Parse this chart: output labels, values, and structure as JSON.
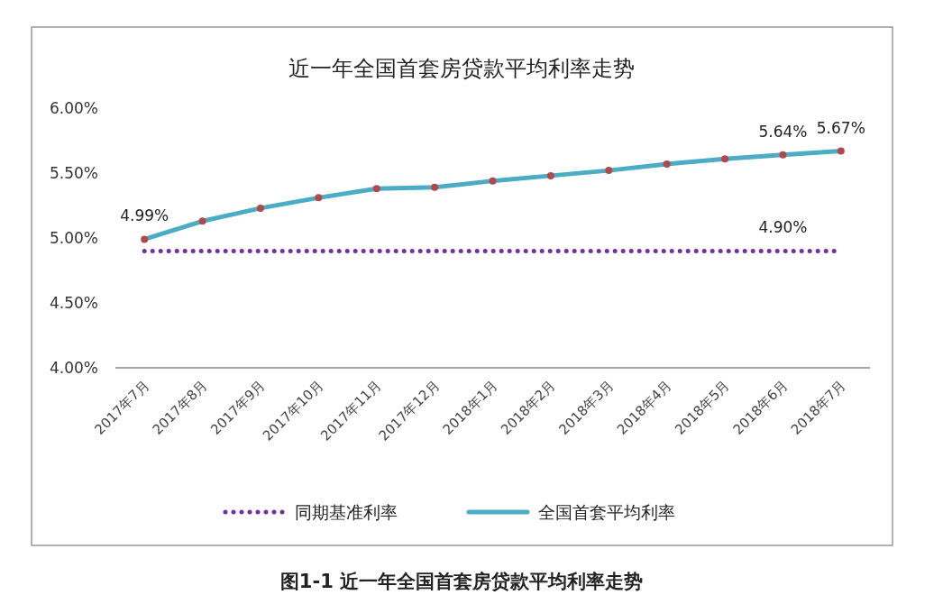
{
  "chart_data": {
    "type": "line",
    "title": "近一年全国首套房贷款平均利率走势",
    "categories": [
      "2017年7月",
      "2017年8月",
      "2017年9月",
      "2017年10月",
      "2017年11月",
      "2017年12月",
      "2018年1月",
      "2018年2月",
      "2018年3月",
      "2018年4月",
      "2018年5月",
      "2018年6月",
      "2018年7月"
    ],
    "series": [
      {
        "name": "同期基准利率",
        "color": "#7030a0",
        "line_style": "dotted",
        "marker": "none",
        "values": [
          4.9,
          4.9,
          4.9,
          4.9,
          4.9,
          4.9,
          4.9,
          4.9,
          4.9,
          4.9,
          4.9,
          4.9,
          4.9
        ],
        "value_labels": [
          null,
          null,
          null,
          null,
          null,
          null,
          null,
          null,
          null,
          null,
          null,
          "4.90%",
          null
        ]
      },
      {
        "name": "全国首套平均利率",
        "color": "#4bacc6",
        "line_style": "solid",
        "marker": "circle",
        "values": [
          4.99,
          5.13,
          5.23,
          5.31,
          5.38,
          5.39,
          5.44,
          5.48,
          5.52,
          5.57,
          5.61,
          5.64,
          5.67
        ],
        "value_labels": [
          "4.99%",
          null,
          null,
          null,
          null,
          null,
          null,
          null,
          null,
          null,
          null,
          "5.64%",
          "5.67%"
        ]
      }
    ],
    "ylim": [
      4,
      6
    ],
    "yticks": [
      {
        "value": 4,
        "label": "4.00%"
      },
      {
        "value": 4.5,
        "label": "4.50%"
      },
      {
        "value": 5,
        "label": "5.00%"
      },
      {
        "value": 5.5,
        "label": "5.50%"
      },
      {
        "value": 6,
        "label": "6.00%"
      }
    ],
    "grid": false,
    "legend": "bottom",
    "annotations": [
      "图1-1 近一年全国首套房贷款平均利率走势"
    ]
  }
}
